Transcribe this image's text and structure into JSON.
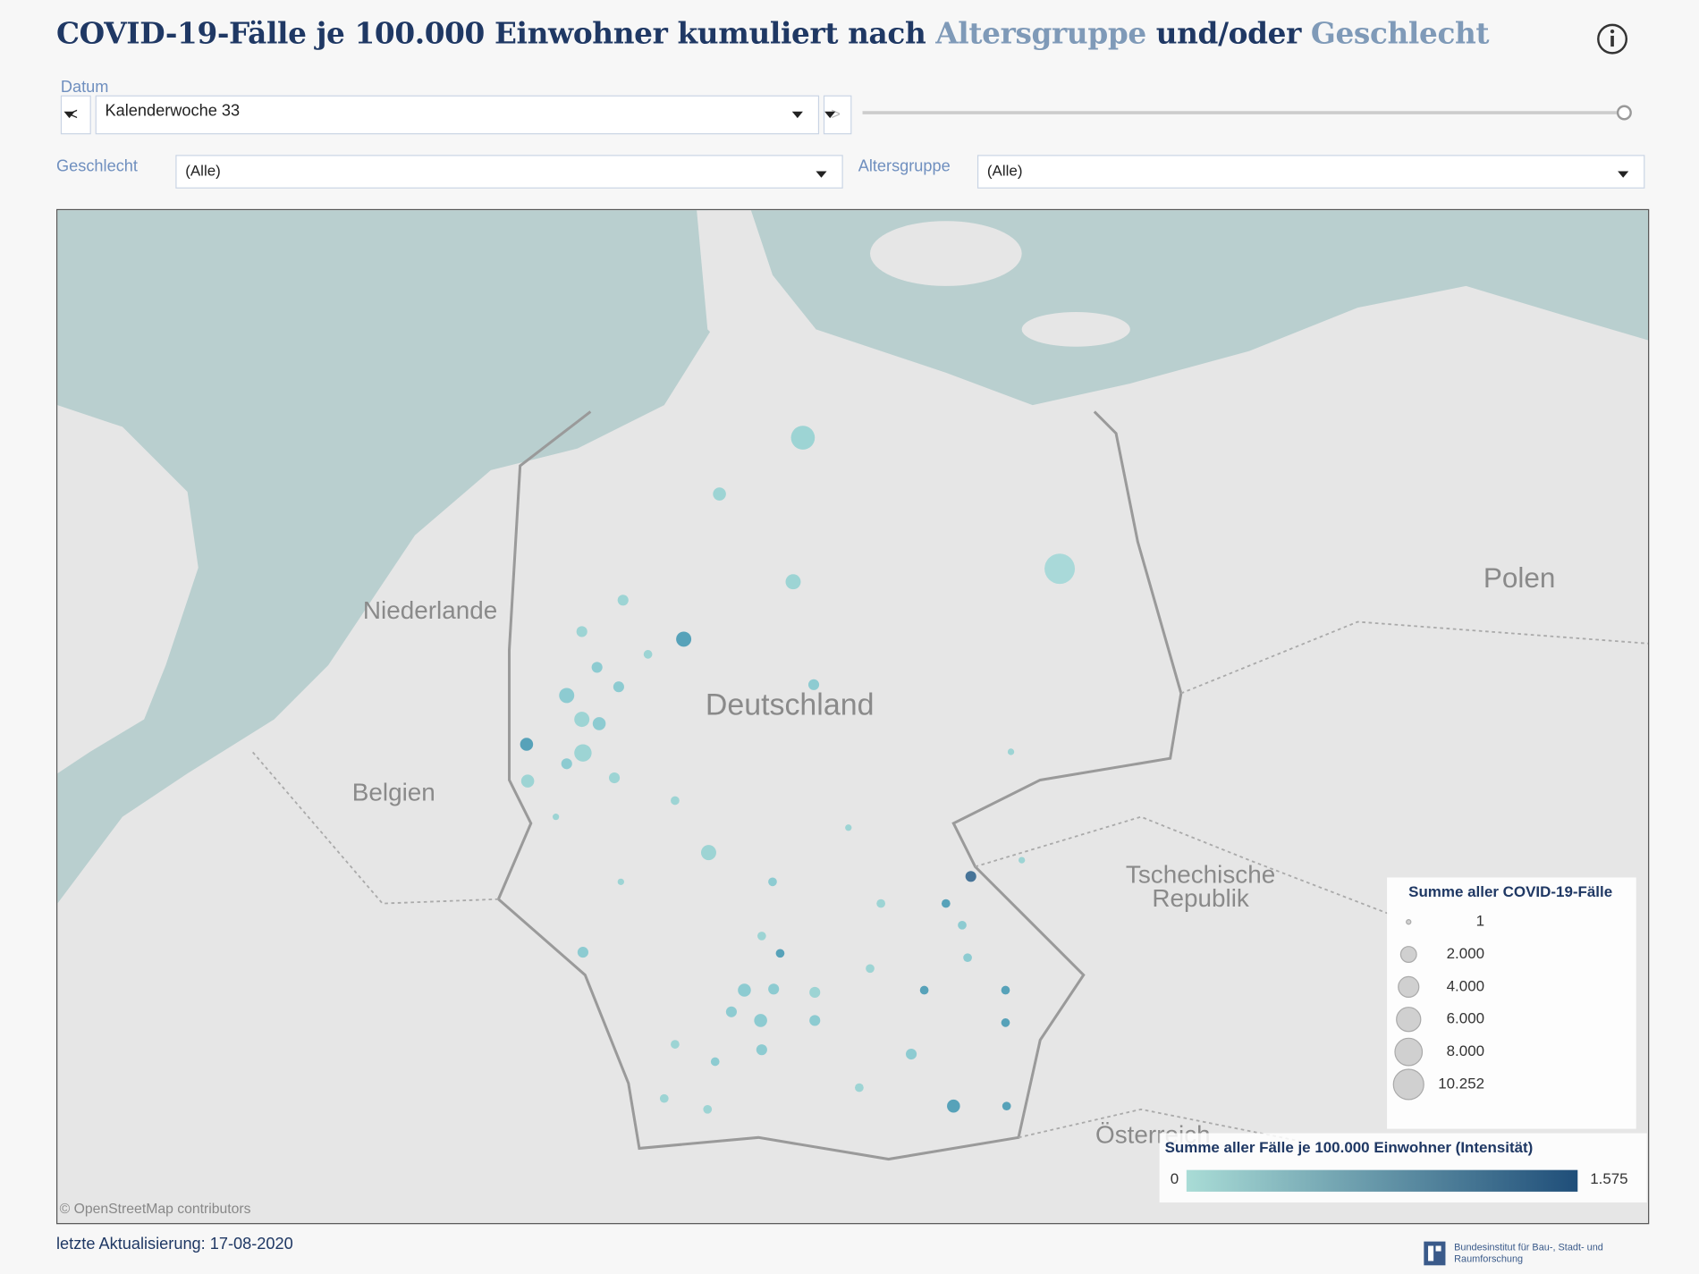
{
  "header": {
    "title_parts": [
      "COVID-19-Fälle je 100.000 Einwohner kumuliert nach",
      "Altersgruppe",
      "und/oder",
      "Geschlecht"
    ]
  },
  "filters": {
    "date": {
      "label": "Datum",
      "value": "Kalenderwoche 33"
    },
    "sex": {
      "label": "Geschlecht",
      "value": "(Alle)"
    },
    "age": {
      "label": "Altersgruppe",
      "value": "(Alle)"
    }
  },
  "map": {
    "labels": [
      "Niederlande",
      "Deutschland",
      "Belgien",
      "Polen",
      "Tschechische Republik",
      "Österreich"
    ],
    "attribution": "© OpenStreetMap contributors",
    "size_legend": {
      "title": "Summe aller COVID-19-Fälle",
      "items": [
        1,
        {
          "value": 2000,
          "label": "2.000"
        },
        {
          "value": 4000,
          "label": "4.000"
        },
        {
          "value": 6000,
          "label": "6.000"
        },
        {
          "value": 8000,
          "label": "8.000"
        },
        {
          "value": 10252,
          "label": "10.252"
        }
      ]
    },
    "color_legend": {
      "title": "Summe aller Fälle je 100.000 Einwohner (Intensität)",
      "min": 0,
      "max": {
        "value": 1575,
        "label": "1.575"
      },
      "colors": [
        "#a9dcd6",
        "#1f4e79"
      ]
    }
  },
  "footer": {
    "updated": "letzte Aktualisierung: 17-08-2020",
    "logo_text": "Bundesinstitut für Bau-, Stadt- und Raumforschung"
  }
}
